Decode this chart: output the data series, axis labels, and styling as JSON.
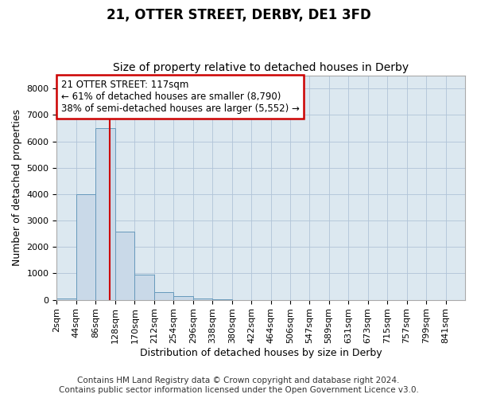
{
  "title": "21, OTTER STREET, DERBY, DE1 3FD",
  "subtitle": "Size of property relative to detached houses in Derby",
  "xlabel": "Distribution of detached houses by size in Derby",
  "ylabel": "Number of detached properties",
  "footer_line1": "Contains HM Land Registry data © Crown copyright and database right 2024.",
  "footer_line2": "Contains public sector information licensed under the Open Government Licence v3.0.",
  "bin_edges": [
    2,
    44,
    86,
    128,
    170,
    212,
    254,
    296,
    338,
    380,
    422,
    464,
    506,
    547,
    589,
    631,
    673,
    715,
    757,
    799,
    841
  ],
  "bin_labels": [
    "2sqm",
    "44sqm",
    "86sqm",
    "128sqm",
    "170sqm",
    "212sqm",
    "254sqm",
    "296sqm",
    "338sqm",
    "380sqm",
    "422sqm",
    "464sqm",
    "506sqm",
    "547sqm",
    "589sqm",
    "631sqm",
    "673sqm",
    "715sqm",
    "757sqm",
    "799sqm",
    "841sqm"
  ],
  "bar_heights": [
    50,
    3990,
    6490,
    2580,
    950,
    290,
    130,
    60,
    20,
    0,
    0,
    0,
    0,
    0,
    0,
    0,
    0,
    0,
    0,
    0
  ],
  "bar_color": "#c9d9e8",
  "bar_edge_color": "#6699bb",
  "property_line_x": 117,
  "property_line_color": "#cc0000",
  "annotation_line1": "21 OTTER STREET: 117sqm",
  "annotation_line2": "← 61% of detached houses are smaller (8,790)",
  "annotation_line3": "38% of semi-detached houses are larger (5,552) →",
  "annotation_box_color": "#cc0000",
  "ylim": [
    0,
    8500
  ],
  "yticks": [
    0,
    1000,
    2000,
    3000,
    4000,
    5000,
    6000,
    7000,
    8000
  ],
  "grid_color": "#b0c4d8",
  "plot_bg_color": "#dce8f0",
  "title_fontsize": 12,
  "subtitle_fontsize": 10,
  "xlabel_fontsize": 9,
  "ylabel_fontsize": 9,
  "tick_fontsize": 8,
  "footer_fontsize": 7.5,
  "annotation_fontsize": 8.5
}
